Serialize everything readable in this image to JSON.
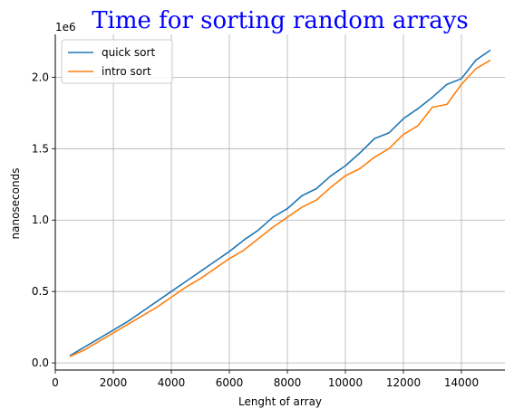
{
  "chart_data": {
    "type": "line",
    "title": "Time for sorting random arrays",
    "title_color": "#0000ff",
    "xlabel": "Lenght of array",
    "ylabel": "nanoseconds",
    "y_offset_text": "1e6",
    "xlim": [
      0,
      15500
    ],
    "ylim": [
      -0.05,
      2.3
    ],
    "x_ticks": [
      0,
      2000,
      4000,
      6000,
      8000,
      10000,
      12000,
      14000
    ],
    "x_tick_labels": [
      "0",
      "2000",
      "4000",
      "6000",
      "8000",
      "10000",
      "12000",
      "14000"
    ],
    "y_ticks": [
      0.0,
      0.5,
      1.0,
      1.5,
      2.0
    ],
    "y_tick_labels": [
      "0.0",
      "0.5",
      "1.0",
      "1.5",
      "2.0"
    ],
    "grid": true,
    "legend_position": "upper-left",
    "x": [
      500,
      1000,
      1500,
      2000,
      2500,
      3000,
      3500,
      4000,
      4500,
      5000,
      5500,
      6000,
      6500,
      7000,
      7500,
      8000,
      8500,
      9000,
      9500,
      10000,
      10500,
      11000,
      11500,
      12000,
      12500,
      13000,
      13500,
      14000,
      14500,
      15000
    ],
    "series": [
      {
        "name": "quick sort",
        "color": "#1f77b4",
        "values": [
          0.05,
          0.11,
          0.17,
          0.23,
          0.29,
          0.36,
          0.43,
          0.5,
          0.57,
          0.64,
          0.71,
          0.78,
          0.86,
          0.93,
          1.02,
          1.08,
          1.17,
          1.22,
          1.31,
          1.38,
          1.47,
          1.57,
          1.61,
          1.71,
          1.78,
          1.86,
          1.95,
          1.99,
          2.12,
          2.19
        ]
      },
      {
        "name": "intro sort",
        "color": "#ff7f0e",
        "values": [
          0.045,
          0.09,
          0.15,
          0.21,
          0.27,
          0.33,
          0.39,
          0.46,
          0.53,
          0.59,
          0.66,
          0.73,
          0.79,
          0.87,
          0.95,
          1.02,
          1.09,
          1.14,
          1.23,
          1.31,
          1.36,
          1.44,
          1.5,
          1.6,
          1.66,
          1.79,
          1.81,
          1.95,
          2.06,
          2.12
        ]
      }
    ]
  }
}
